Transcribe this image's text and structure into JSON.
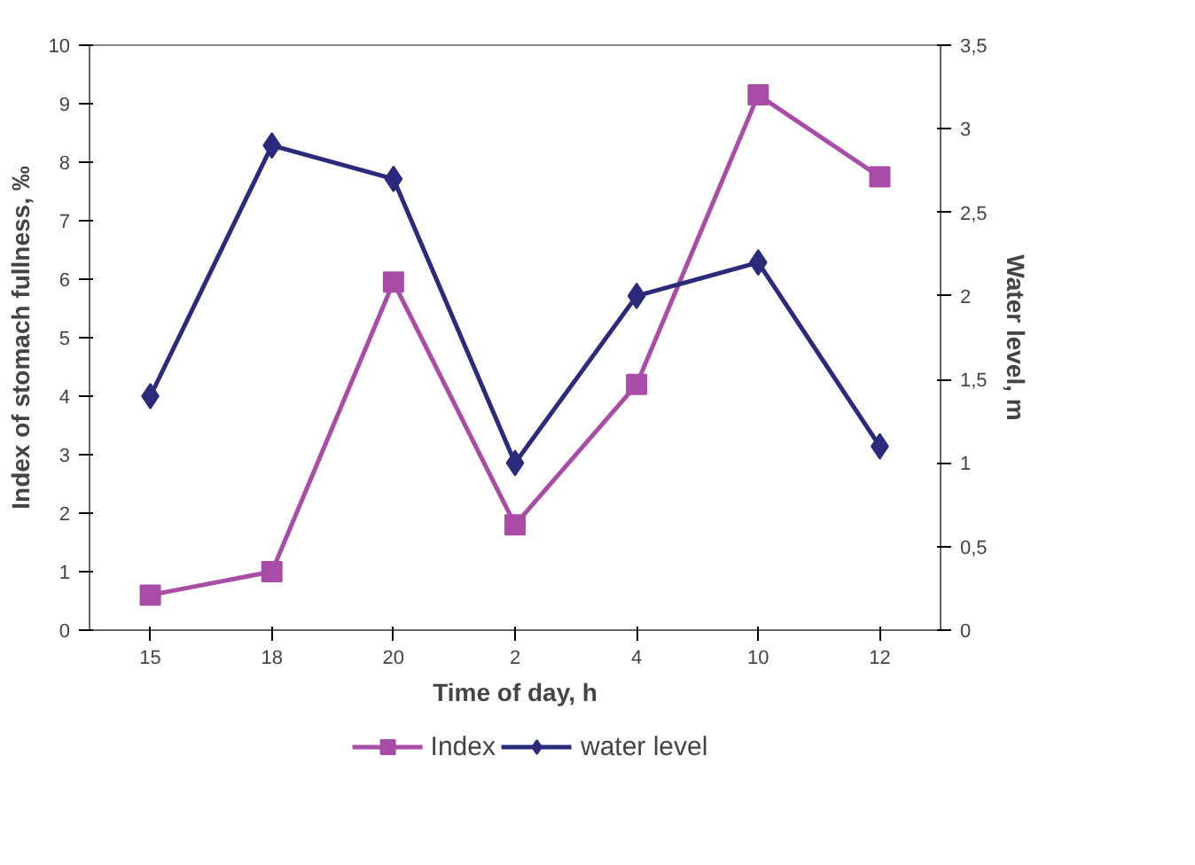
{
  "chart_data": {
    "type": "line",
    "xlabel": "Time of day, h",
    "ylabel": "Index of stomach fullness, ‰",
    "y2label": "Water level, m",
    "categories": [
      "15",
      "18",
      "20",
      "2",
      "4",
      "10",
      "12"
    ],
    "series": [
      {
        "name": "Index",
        "color": "#a84ca8",
        "marker": "square",
        "values": [
          0.6,
          1.0,
          5.95,
          1.8,
          4.2,
          9.15,
          7.75
        ]
      },
      {
        "name": "water level",
        "color": "#2b2a7c",
        "marker": "diamond",
        "axis": "y2",
        "values": [
          1.4,
          2.9,
          2.7,
          1.0,
          2.0,
          2.2,
          1.1
        ]
      }
    ],
    "ylim": [
      0,
      10
    ],
    "yticks": [
      0,
      1,
      2,
      3,
      4,
      5,
      6,
      7,
      8,
      9,
      10
    ],
    "y2lim": [
      0,
      3.5
    ],
    "y2ticks": [
      0,
      {
        "value": 0.5,
        "label": "0,5"
      },
      1,
      {
        "value": 1.5,
        "label": "1,5"
      },
      2,
      {
        "value": 2.5,
        "label": "2,5"
      },
      3,
      {
        "value": 3.5,
        "label": "3,5"
      }
    ],
    "grid": false,
    "legend": "bottom"
  }
}
